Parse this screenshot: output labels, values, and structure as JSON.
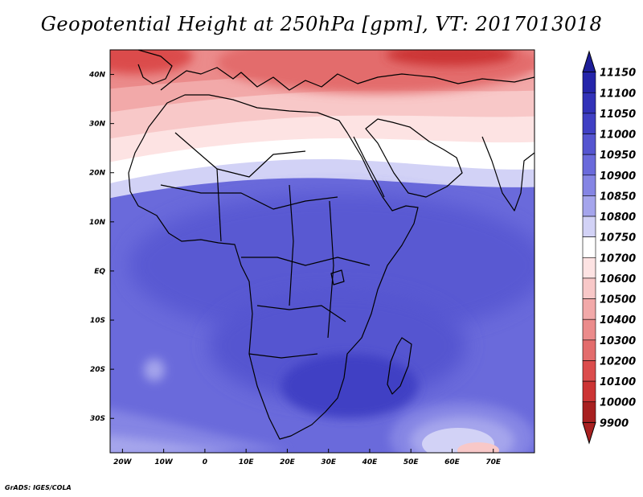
{
  "title": "Geopotential Height at 250hPa [gpm], VT: 2017013018",
  "credit": "GrADS: IGES/COLA",
  "map": {
    "projection": "lat-lon",
    "lon_range": [
      -23,
      80
    ],
    "lat_range": [
      -37,
      45
    ],
    "lon_ticks": [
      {
        "value": -20,
        "label": "20W"
      },
      {
        "value": -10,
        "label": "10W"
      },
      {
        "value": 0,
        "label": "0"
      },
      {
        "value": 10,
        "label": "10E"
      },
      {
        "value": 20,
        "label": "20E"
      },
      {
        "value": 30,
        "label": "30E"
      },
      {
        "value": 40,
        "label": "40E"
      },
      {
        "value": 50,
        "label": "50E"
      },
      {
        "value": 60,
        "label": "60E"
      },
      {
        "value": 70,
        "label": "70E"
      }
    ],
    "lat_ticks": [
      {
        "value": 40,
        "label": "40N"
      },
      {
        "value": 30,
        "label": "30N"
      },
      {
        "value": 20,
        "label": "20N"
      },
      {
        "value": 10,
        "label": "10N"
      },
      {
        "value": 0,
        "label": "EQ"
      },
      {
        "value": -10,
        "label": "10S"
      },
      {
        "value": -20,
        "label": "20S"
      },
      {
        "value": -30,
        "label": "30S"
      }
    ]
  },
  "colorbar": {
    "levels": [
      {
        "label": "11150",
        "color": "#1e1e99"
      },
      {
        "label": "11100",
        "color": "#2525aa"
      },
      {
        "label": "11050",
        "color": "#3232b8"
      },
      {
        "label": "11000",
        "color": "#4040c4"
      },
      {
        "label": "10950",
        "color": "#5555d0"
      },
      {
        "label": "10900",
        "color": "#6a6adb"
      },
      {
        "label": "10850",
        "color": "#8585e4"
      },
      {
        "label": "10800",
        "color": "#a5a5ec"
      },
      {
        "label": "10750",
        "color": "#d2d2f6"
      },
      {
        "label": "10700",
        "color": "#ffffff"
      },
      {
        "label": "10600",
        "color": "#fde3e3"
      },
      {
        "label": "10500",
        "color": "#f8c8c8"
      },
      {
        "label": "10400",
        "color": "#f2a9a9"
      },
      {
        "label": "10300",
        "color": "#eb8b8b"
      },
      {
        "label": "10200",
        "color": "#e36c6c"
      },
      {
        "label": "10100",
        "color": "#db4c4c"
      },
      {
        "label": "10000",
        "color": "#cc3434"
      },
      {
        "label": "9900",
        "color": "#a82020"
      }
    ]
  }
}
